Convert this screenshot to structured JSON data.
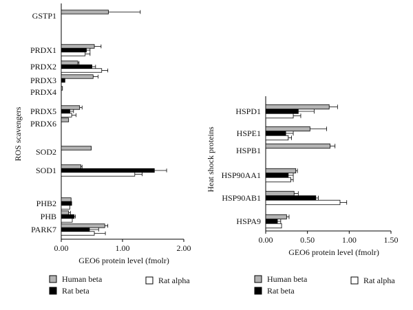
{
  "chart_data": [
    {
      "type": "bar",
      "orientation": "horizontal",
      "ylabel": "ROS scavengers",
      "xlabel": "GEO6 protein level (fmolr)",
      "xlim": [
        0,
        2.0
      ],
      "xticks": [
        "0.00",
        "1.00",
        "2.00"
      ],
      "xtick_values": [
        0,
        1,
        2
      ],
      "categories": [
        "GSTP1",
        "PRDX1",
        "PRDX2",
        "PRDX3",
        "PRDX4",
        "PRDX5",
        "PRDX6",
        "SOD2",
        "SOD1",
        "PHB2",
        "PHB",
        "PARK7"
      ],
      "series": [
        {
          "name": "Human beta",
          "color": "#b3b3b3",
          "values": [
            0.77,
            0.54,
            0.27,
            0.52,
            0.02,
            0.3,
            0.12,
            0.49,
            0.32,
            0.16,
            0.12,
            0.71
          ],
          "errors": [
            0.52,
            0.11,
            0.02,
            0.08,
            0,
            0.04,
            0,
            0,
            0.02,
            0,
            0.03,
            0.05
          ]
        },
        {
          "name": "Rat beta",
          "color": "#000000",
          "values": [
            null,
            0.41,
            0.5,
            0.06,
            null,
            0.14,
            null,
            null,
            1.52,
            0.17,
            0.21,
            0.46
          ],
          "errors": [
            0,
            0.06,
            0.06,
            0,
            0,
            0.06,
            0,
            0,
            0.2,
            0,
            0.02,
            0.15
          ]
        },
        {
          "name": "Rat alpha",
          "color": "#ffffff",
          "values": [
            null,
            0.39,
            0.66,
            null,
            null,
            0.17,
            null,
            null,
            1.2,
            0.14,
            0.18,
            0.54
          ],
          "errors": [
            0,
            0.08,
            0.1,
            0,
            0,
            0.07,
            0,
            0,
            0.12,
            0,
            0,
            0.18
          ]
        }
      ]
    },
    {
      "type": "bar",
      "orientation": "horizontal",
      "ylabel": "Heat shock proteins",
      "xlabel": "GEO6 protein level (fmolr)",
      "xlim": [
        0,
        1.5
      ],
      "xticks": [
        "0.00",
        "0.50",
        "1.00",
        "1.50"
      ],
      "xtick_values": [
        0,
        0.5,
        1.0,
        1.5
      ],
      "categories": [
        "HSPD1",
        "HSPE1",
        "HSPB1",
        "HSP90AA1",
        "HSP90AB1",
        "HSPA9"
      ],
      "series": [
        {
          "name": "Human beta",
          "color": "#b3b3b3",
          "values": [
            0.76,
            0.53,
            0.77,
            0.36,
            0.34,
            0.25
          ],
          "errors": [
            0.1,
            0.2,
            0.06,
            0.02,
            0.05,
            0.03
          ]
        },
        {
          "name": "Rat beta",
          "color": "#000000",
          "values": [
            0.39,
            0.24,
            null,
            0.27,
            0.6,
            0.14
          ],
          "errors": [
            0.19,
            0.09,
            0,
            0.06,
            0.03,
            0.04
          ]
        },
        {
          "name": "Rat alpha",
          "color": "#ffffff",
          "values": [
            0.33,
            0.27,
            null,
            0.3,
            0.89,
            0.19
          ],
          "errors": [
            0.09,
            0.04,
            0,
            0.03,
            0.08,
            0
          ]
        }
      ]
    }
  ],
  "legend": {
    "human_beta": "Human beta",
    "rat_beta": "Rat beta",
    "rat_alpha": "Rat alpha"
  }
}
